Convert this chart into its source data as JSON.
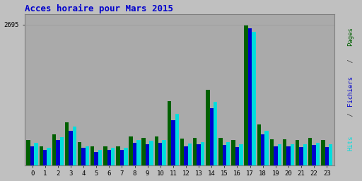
{
  "title": "Acces horaire pour Mars 2015",
  "hours": [
    0,
    1,
    2,
    3,
    4,
    5,
    6,
    7,
    8,
    9,
    10,
    11,
    12,
    13,
    14,
    15,
    16,
    17,
    18,
    19,
    20,
    21,
    22,
    23
  ],
  "pages": [
    480,
    370,
    600,
    830,
    450,
    360,
    370,
    370,
    550,
    530,
    550,
    1230,
    510,
    530,
    1450,
    530,
    480,
    2680,
    790,
    500,
    500,
    480,
    520,
    480
  ],
  "fichiers": [
    370,
    290,
    480,
    660,
    330,
    260,
    290,
    290,
    430,
    410,
    430,
    860,
    370,
    400,
    1090,
    390,
    350,
    2620,
    590,
    370,
    370,
    350,
    385,
    350
  ],
  "hits": [
    430,
    330,
    540,
    740,
    370,
    300,
    330,
    330,
    480,
    470,
    480,
    980,
    420,
    450,
    1220,
    440,
    400,
    2560,
    660,
    410,
    410,
    400,
    430,
    400
  ],
  "color_pages": "#006000",
  "color_fichiers": "#0000cc",
  "color_hits": "#00dddd",
  "bg_color": "#c0c0c0",
  "plot_bg": "#aaaaaa",
  "title_color": "#0000cc",
  "ylabel_color_pages": "#006000",
  "ylabel_color_fichiers": "#0000cc",
  "ylabel_color_hits": "#00dddd",
  "ytick_label": "2695",
  "ylim": [
    0,
    2900
  ],
  "bar_width": 0.3
}
